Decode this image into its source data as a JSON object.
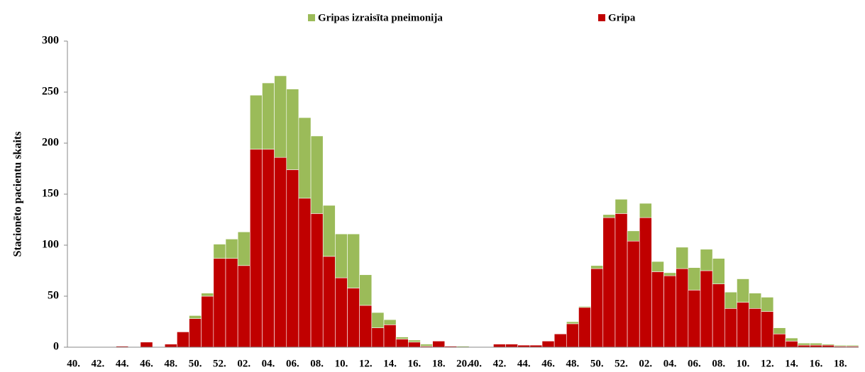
{
  "chart_data": {
    "type": "stacked-bar",
    "y_label": "Stacionēto pacientu skaits",
    "categories": [
      "40.",
      null,
      "42.",
      null,
      "44.",
      null,
      "46.",
      null,
      "48.",
      null,
      "50.",
      null,
      "52.",
      null,
      "02.",
      null,
      "04.",
      null,
      "06.",
      null,
      "08.",
      null,
      "10.",
      null,
      "12.",
      null,
      "14.",
      null,
      "16.",
      null,
      "18.",
      null,
      "20.",
      "40.",
      null,
      "42.",
      null,
      "44.",
      null,
      "46.",
      null,
      "48.",
      null,
      "50.",
      null,
      "52.",
      null,
      "02.",
      null,
      "04.",
      null,
      "06.",
      null,
      "08.",
      null,
      "10.",
      null,
      "12.",
      null,
      "14.",
      null,
      "16.",
      null,
      "18.",
      null
    ],
    "series": [
      {
        "name": "Gripa",
        "color": "#c00000",
        "values": [
          0,
          0,
          0,
          0,
          1,
          0,
          5,
          0,
          3,
          15,
          28,
          50,
          87,
          87,
          80,
          194,
          194,
          186,
          174,
          146,
          131,
          89,
          68,
          58,
          41,
          19,
          22,
          8,
          5,
          1,
          6,
          1,
          0,
          0,
          0,
          3,
          3,
          2,
          2,
          6,
          13,
          23,
          39,
          77,
          127,
          131,
          104,
          127,
          74,
          70,
          77,
          56,
          75,
          62,
          38,
          44,
          38,
          35,
          13,
          6,
          2,
          2,
          2,
          1,
          1
        ]
      },
      {
        "name": "Gripas izraisīta pneimonija",
        "color": "#9bbb59",
        "values": [
          0,
          0,
          0,
          0,
          0,
          0,
          0,
          0,
          0,
          0,
          3,
          3,
          14,
          19,
          33,
          53,
          65,
          80,
          79,
          79,
          76,
          50,
          43,
          53,
          30,
          15,
          5,
          2,
          2,
          2,
          0,
          0,
          1,
          0,
          0,
          0,
          0,
          0,
          0,
          0,
          0,
          2,
          1,
          3,
          3,
          14,
          10,
          14,
          10,
          3,
          21,
          22,
          21,
          25,
          16,
          23,
          15,
          14,
          6,
          3,
          2,
          2,
          1,
          1,
          1
        ]
      }
    ],
    "legend_order": [
      1,
      0
    ],
    "ylim": [
      0,
      300
    ],
    "yticks": [
      0,
      50,
      100,
      150,
      200,
      250,
      300
    ],
    "grid": false
  }
}
